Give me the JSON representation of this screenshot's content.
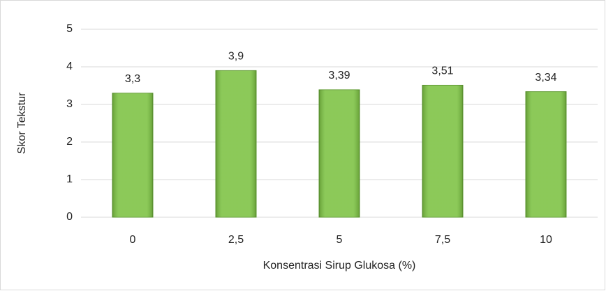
{
  "chart_data": {
    "type": "bar",
    "categories": [
      "0",
      "2,5",
      "5",
      "7,5",
      "10"
    ],
    "values": [
      3.3,
      3.9,
      3.39,
      3.51,
      3.34
    ],
    "value_labels": [
      "3,3",
      "3,9",
      "3,39",
      "3,51",
      "3,34"
    ],
    "color": "#7cc242",
    "x_label": "Konsentrasi Sirup Glukosa (%)",
    "y_label": "Skor Tekstur",
    "ylim": [
      0,
      5
    ],
    "yticks": [
      0,
      1,
      2,
      3,
      4,
      5
    ],
    "grid": true
  }
}
